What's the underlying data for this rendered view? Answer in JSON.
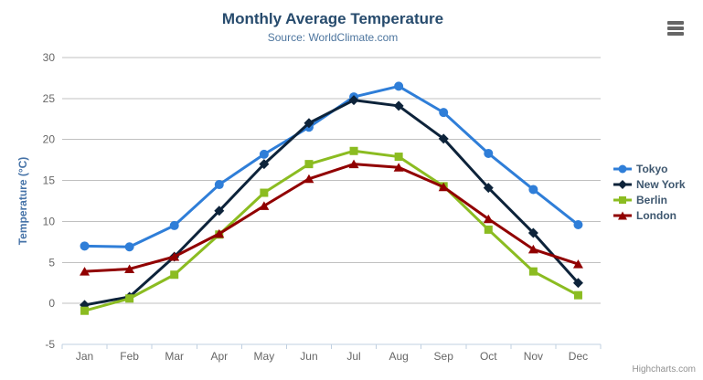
{
  "credit": "Highcharts.com",
  "icons": {
    "export_menu": "hamburger-icon"
  },
  "style_colors": {
    "title": "#274b6d",
    "subtitle": "#4d759e",
    "axis_title": "#4572A7",
    "tick_label": "#666666",
    "grid": "#C0C0C0",
    "axis_line": "#C0D0E0",
    "legend_text": "#3E576F",
    "credit": "#909090",
    "hamburger": "#666666",
    "background": "#FFFFFF"
  },
  "chart_data": {
    "type": "line",
    "title": "Monthly Average Temperature",
    "subtitle": "Source: WorldClimate.com",
    "xlabel": "",
    "ylabel": "Temperature (°C)",
    "ylim": [
      -5,
      30
    ],
    "yticks": [
      -5,
      0,
      5,
      10,
      15,
      20,
      25,
      30
    ],
    "grid": true,
    "legend_position": "right",
    "categories": [
      "Jan",
      "Feb",
      "Mar",
      "Apr",
      "May",
      "Jun",
      "Jul",
      "Aug",
      "Sep",
      "Oct",
      "Nov",
      "Dec"
    ],
    "series": [
      {
        "name": "Tokyo",
        "color": "#2f7ed8",
        "marker": "circle",
        "values": [
          7.0,
          6.9,
          9.5,
          14.5,
          18.2,
          21.5,
          25.2,
          26.5,
          23.3,
          18.3,
          13.9,
          9.6
        ]
      },
      {
        "name": "New York",
        "color": "#0d233a",
        "marker": "diamond",
        "values": [
          -0.2,
          0.8,
          5.7,
          11.3,
          17.0,
          22.0,
          24.8,
          24.1,
          20.1,
          14.1,
          8.6,
          2.5
        ]
      },
      {
        "name": "Berlin",
        "color": "#8bbc21",
        "marker": "square",
        "values": [
          -0.9,
          0.6,
          3.5,
          8.4,
          13.5,
          17.0,
          18.6,
          17.9,
          14.3,
          9.0,
          3.9,
          1.0
        ]
      },
      {
        "name": "London",
        "color": "#910000",
        "marker": "triangle",
        "values": [
          3.9,
          4.2,
          5.7,
          8.5,
          11.9,
          15.2,
          17.0,
          16.6,
          14.2,
          10.3,
          6.6,
          4.8
        ]
      }
    ]
  }
}
